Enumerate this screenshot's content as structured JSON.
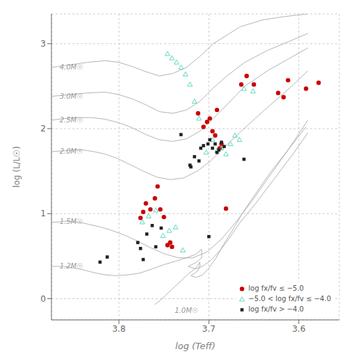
{
  "chart_data": {
    "type": "scatter",
    "xlabel": "log (Teff)",
    "ylabel": "log (L/L☉)",
    "xlim": [
      3.555,
      3.875
    ],
    "ylim": [
      -0.25,
      3.35
    ],
    "xticks": [
      3.8,
      3.7,
      3.6
    ],
    "yticks": [
      0,
      1,
      2,
      3
    ],
    "x_reversed": true,
    "grid": true,
    "legend": "lower right",
    "series": [
      {
        "type": "line",
        "color": "#aaaaaa",
        "x": [
          3.875,
          3.855,
          3.835,
          3.815,
          3.8,
          3.785,
          3.77,
          3.755,
          3.74,
          3.725,
          3.71,
          3.695,
          3.68,
          3.665,
          3.64,
          3.615,
          3.59
        ],
        "y": [
          2.72,
          2.75,
          2.78,
          2.8,
          2.78,
          2.73,
          2.67,
          2.62,
          2.65,
          2.72,
          2.85,
          3.0,
          3.1,
          3.2,
          3.28,
          3.32,
          3.35
        ]
      },
      {
        "type": "line",
        "color": "#aaaaaa",
        "x": [
          3.875,
          3.855,
          3.835,
          3.815,
          3.8,
          3.785,
          3.77,
          3.755,
          3.74,
          3.725,
          3.71,
          3.695,
          3.68,
          3.66,
          3.635,
          3.61,
          3.59
        ],
        "y": [
          2.38,
          2.4,
          2.42,
          2.43,
          2.4,
          2.35,
          2.28,
          2.2,
          2.18,
          2.22,
          2.32,
          2.48,
          2.62,
          2.78,
          2.92,
          3.03,
          3.12
        ]
      },
      {
        "type": "line",
        "color": "#aaaaaa",
        "x": [
          3.875,
          3.86,
          3.845,
          3.83,
          3.815,
          3.8,
          3.785,
          3.77,
          3.755,
          3.74,
          3.725,
          3.71,
          3.695,
          3.68,
          3.66,
          3.635,
          3.61,
          3.59
        ],
        "y": [
          2.1,
          2.12,
          2.13,
          2.13,
          2.11,
          2.07,
          2.01,
          1.93,
          1.87,
          1.85,
          1.88,
          1.97,
          2.12,
          2.28,
          2.5,
          2.68,
          2.83,
          2.95
        ]
      },
      {
        "type": "line",
        "color": "#aaaaaa",
        "x": [
          3.875,
          3.86,
          3.85,
          3.84,
          3.828,
          3.815,
          3.802,
          3.788,
          3.773,
          3.758,
          3.743,
          3.728,
          3.713,
          3.698,
          3.683,
          3.663,
          3.638,
          3.61,
          3.59
        ],
        "y": [
          1.73,
          1.74,
          1.75,
          1.75,
          1.73,
          1.7,
          1.65,
          1.58,
          1.5,
          1.43,
          1.4,
          1.42,
          1.5,
          1.62,
          1.78,
          1.98,
          2.22,
          2.48,
          2.68
        ]
      },
      {
        "type": "line",
        "color": "#aaaaaa",
        "x": [
          3.875,
          3.868,
          3.862,
          3.855,
          3.848,
          3.84,
          3.832,
          3.823,
          3.813,
          3.802,
          3.79,
          3.778,
          3.765,
          3.75,
          3.734,
          3.718,
          3.702,
          3.686,
          3.67,
          3.652,
          3.632,
          3.61,
          3.59
        ],
        "y": [
          0.9,
          0.9,
          0.91,
          0.91,
          0.9,
          0.89,
          0.87,
          0.85,
          0.82,
          0.78,
          0.73,
          0.67,
          0.6,
          0.53,
          0.48,
          0.48,
          0.55,
          0.7,
          0.9,
          1.15,
          1.45,
          1.78,
          2.1
        ]
      },
      {
        "type": "line",
        "color": "#aaaaaa",
        "x": [
          3.875,
          3.87,
          3.865,
          3.86,
          3.855,
          3.85,
          3.845,
          3.84,
          3.833,
          3.825,
          3.815,
          3.803,
          3.79,
          3.777,
          3.763,
          3.75,
          3.737,
          3.725,
          3.715,
          3.708,
          3.708,
          3.715,
          3.723,
          3.715,
          3.707,
          3.698,
          3.688,
          3.678,
          3.665,
          3.648,
          3.628,
          3.608,
          3.59
        ],
        "y": [
          0.38,
          0.38,
          0.38,
          0.38,
          0.37,
          0.36,
          0.35,
          0.34,
          0.32,
          0.3,
          0.28,
          0.27,
          0.28,
          0.3,
          0.35,
          0.4,
          0.44,
          0.48,
          0.52,
          0.58,
          0.48,
          0.42,
          0.38,
          0.35,
          0.38,
          0.45,
          0.56,
          0.7,
          0.9,
          1.12,
          1.4,
          1.68,
          1.95
        ]
      },
      {
        "type": "line",
        "color": "#aaaaaa",
        "x": [
          3.76,
          3.754,
          3.748,
          3.742,
          3.736,
          3.73,
          3.724,
          3.718,
          3.713,
          3.71,
          3.71,
          3.714,
          3.72,
          3.714,
          3.707,
          3.7,
          3.692,
          3.684,
          3.674,
          3.663,
          3.649,
          3.632,
          3.612,
          3.592
        ],
        "y": [
          -0.07,
          -0.02,
          0.04,
          0.1,
          0.16,
          0.22,
          0.28,
          0.33,
          0.38,
          0.43,
          0.37,
          0.31,
          0.27,
          0.25,
          0.28,
          0.36,
          0.48,
          0.63,
          0.8,
          1.0,
          1.22,
          1.48,
          1.75,
          2.02
        ]
      },
      {
        "type": "scatter",
        "name": "log fx/fv ≤ −5.0",
        "color": "#cc0000",
        "marker": "circle",
        "values": [
          [
            3.776,
            0.95
          ],
          [
            3.773,
            1.02
          ],
          [
            3.77,
            1.12
          ],
          [
            3.765,
            1.05
          ],
          [
            3.76,
            1.18
          ],
          [
            3.757,
            1.32
          ],
          [
            3.754,
            1.05
          ],
          [
            3.75,
            0.96
          ],
          [
            3.746,
            0.63
          ],
          [
            3.743,
            0.66
          ],
          [
            3.741,
            0.61
          ],
          [
            3.702,
            2.08
          ],
          [
            3.699,
            2.12
          ],
          [
            3.696,
            1.97
          ],
          [
            3.693,
            1.92
          ],
          [
            3.691,
            2.22
          ],
          [
            3.688,
            1.77
          ],
          [
            3.686,
            1.82
          ],
          [
            3.712,
            2.18
          ],
          [
            3.706,
            2.02
          ],
          [
            3.664,
            2.52
          ],
          [
            3.658,
            2.62
          ],
          [
            3.65,
            2.52
          ],
          [
            3.623,
            2.42
          ],
          [
            3.617,
            2.37
          ],
          [
            3.612,
            2.57
          ],
          [
            3.681,
            1.06
          ],
          [
            3.592,
            2.47
          ],
          [
            3.578,
            2.54
          ]
        ]
      },
      {
        "type": "scatter",
        "name": "−5.0 < log fx/fv ≤ −4.0",
        "color": "#5dd8c0",
        "marker": "triangle-open",
        "values": [
          [
            3.774,
            0.9
          ],
          [
            3.767,
            0.97
          ],
          [
            3.759,
            1.04
          ],
          [
            3.751,
            0.74
          ],
          [
            3.744,
            0.8
          ],
          [
            3.737,
            0.84
          ],
          [
            3.729,
            0.57
          ],
          [
            3.703,
            1.72
          ],
          [
            3.696,
            1.87
          ],
          [
            3.691,
            1.74
          ],
          [
            3.686,
            1.77
          ],
          [
            3.681,
            1.7
          ],
          [
            3.676,
            1.82
          ],
          [
            3.671,
            1.92
          ],
          [
            3.666,
            1.87
          ],
          [
            3.661,
            2.47
          ],
          [
            3.651,
            2.44
          ],
          [
            3.716,
            2.32
          ],
          [
            3.711,
            2.12
          ],
          [
            3.721,
            2.52
          ],
          [
            3.726,
            2.64
          ],
          [
            3.731,
            2.72
          ],
          [
            3.736,
            2.78
          ],
          [
            3.741,
            2.83
          ],
          [
            3.746,
            2.88
          ]
        ]
      },
      {
        "type": "scatter",
        "name": "log fx/fv > −4.0",
        "color": "#222222",
        "marker": "square",
        "values": [
          [
            3.779,
            0.66
          ],
          [
            3.776,
            0.59
          ],
          [
            3.773,
            0.46
          ],
          [
            3.769,
            0.76
          ],
          [
            3.763,
            0.86
          ],
          [
            3.759,
            0.61
          ],
          [
            3.753,
            0.83
          ],
          [
            3.821,
            0.43
          ],
          [
            3.813,
            0.49
          ],
          [
            3.731,
            1.93
          ],
          [
            3.721,
            1.57
          ],
          [
            3.716,
            1.67
          ],
          [
            3.711,
            1.62
          ],
          [
            3.709,
            1.77
          ],
          [
            3.706,
            1.8
          ],
          [
            3.701,
            1.82
          ],
          [
            3.699,
            1.87
          ],
          [
            3.696,
            1.77
          ],
          [
            3.693,
            1.82
          ],
          [
            3.691,
            1.72
          ],
          [
            3.689,
            1.75
          ],
          [
            3.686,
            1.84
          ],
          [
            3.683,
            1.79
          ],
          [
            3.7,
            0.73
          ],
          [
            3.661,
            1.64
          ],
          [
            3.72,
            1.55
          ]
        ]
      }
    ],
    "annotations": [
      {
        "text": "4.0M☉",
        "x": 3.866,
        "y": 2.72,
        "color": "#999999"
      },
      {
        "text": "3.0M☉",
        "x": 3.866,
        "y": 2.38,
        "color": "#999999"
      },
      {
        "text": "2.5M☉",
        "x": 3.866,
        "y": 2.1,
        "color": "#999999"
      },
      {
        "text": "2.0M☉",
        "x": 3.866,
        "y": 1.73,
        "color": "#999999"
      },
      {
        "text": "1.5M☉",
        "x": 3.866,
        "y": 0.9,
        "color": "#999999"
      },
      {
        "text": "1.2M☉",
        "x": 3.866,
        "y": 0.38,
        "color": "#999999"
      },
      {
        "text": "1.0M☉",
        "x": 3.738,
        "y": -0.14,
        "color": "#999999"
      }
    ]
  }
}
